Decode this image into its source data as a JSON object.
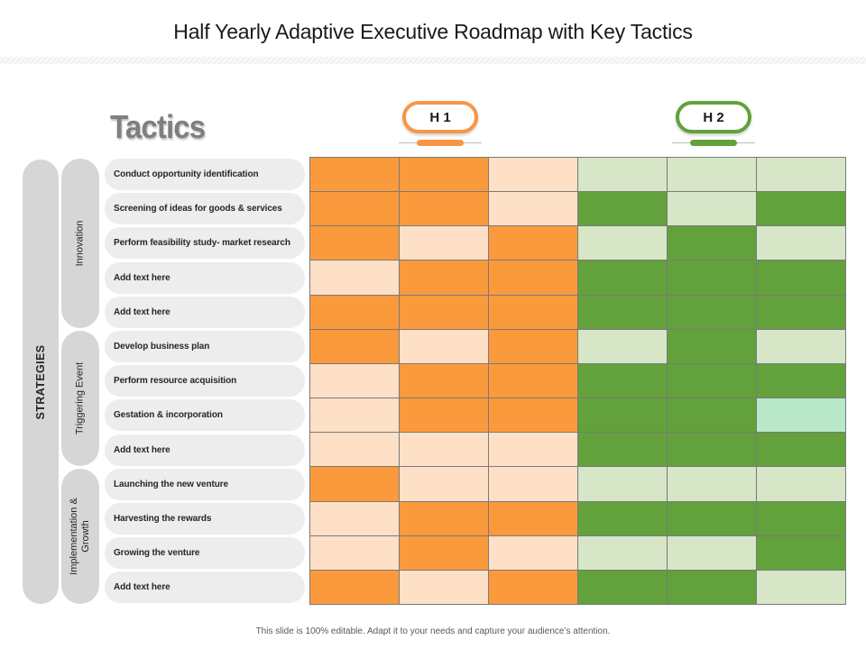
{
  "slide": {
    "title": "Half Yearly Adaptive Executive Roadmap with Key Tactics",
    "tactics_heading": "Tactics",
    "footer": "This slide is 100% editable.  Adapt it to your needs and capture your audience’s attention."
  },
  "periods": [
    {
      "label": "H 1",
      "color": "#f79646"
    },
    {
      "label": "H 2",
      "color": "#62a13b"
    }
  ],
  "strategies_label": "STRATEGIES",
  "groups": [
    {
      "label": "Innovation",
      "rows": 5
    },
    {
      "label": "Triggering Event",
      "rows": 4
    },
    {
      "label": "Implementation & Growth",
      "rows": 4
    }
  ],
  "rows": [
    {
      "label": "Conduct opportunity identification",
      "cells": [
        "o1",
        "o1",
        "o0",
        "g0",
        "g0",
        "g0"
      ]
    },
    {
      "label": "Screening of ideas for goods & services",
      "cells": [
        "o1",
        "o1",
        "o0",
        "g1",
        "g0",
        "g1"
      ]
    },
    {
      "label": "Perform feasibility study-  market research",
      "cells": [
        "o1",
        "o0",
        "o1",
        "g0",
        "g1",
        "g0"
      ]
    },
    {
      "label": "Add text here",
      "cells": [
        "o0",
        "o1",
        "o1",
        "g1",
        "g1",
        "g1"
      ]
    },
    {
      "label": "Add text here",
      "cells": [
        "o1",
        "o1",
        "o1",
        "g1",
        "g1",
        "g1"
      ]
    },
    {
      "label": "Develop business plan",
      "cells": [
        "o1",
        "o0",
        "o1",
        "g0",
        "g1",
        "g0"
      ]
    },
    {
      "label": "Perform resource  acquisition",
      "cells": [
        "o0",
        "o1",
        "o1",
        "g1",
        "g1",
        "g1"
      ]
    },
    {
      "label": "Gestation  & incorporation",
      "cells": [
        "o0",
        "o1",
        "o1",
        "g1",
        "g1",
        "g2"
      ]
    },
    {
      "label": "Add text here",
      "cells": [
        "o0",
        "o0",
        "o0",
        "g1",
        "g1",
        "g1"
      ]
    },
    {
      "label": "Launching the new venture",
      "cells": [
        "o1",
        "o0",
        "o0",
        "g0",
        "g0",
        "g0"
      ]
    },
    {
      "label": "Harvesting the rewards",
      "cells": [
        "o0",
        "o1",
        "o1",
        "g1",
        "g1",
        "g1"
      ]
    },
    {
      "label": "Growing the venture",
      "cells": [
        "o0",
        "o1",
        "o0",
        "g0",
        "g0",
        "g1"
      ]
    },
    {
      "label": "Add text here",
      "cells": [
        "o1",
        "o0",
        "o1",
        "g1",
        "g1",
        "g0"
      ]
    }
  ]
}
